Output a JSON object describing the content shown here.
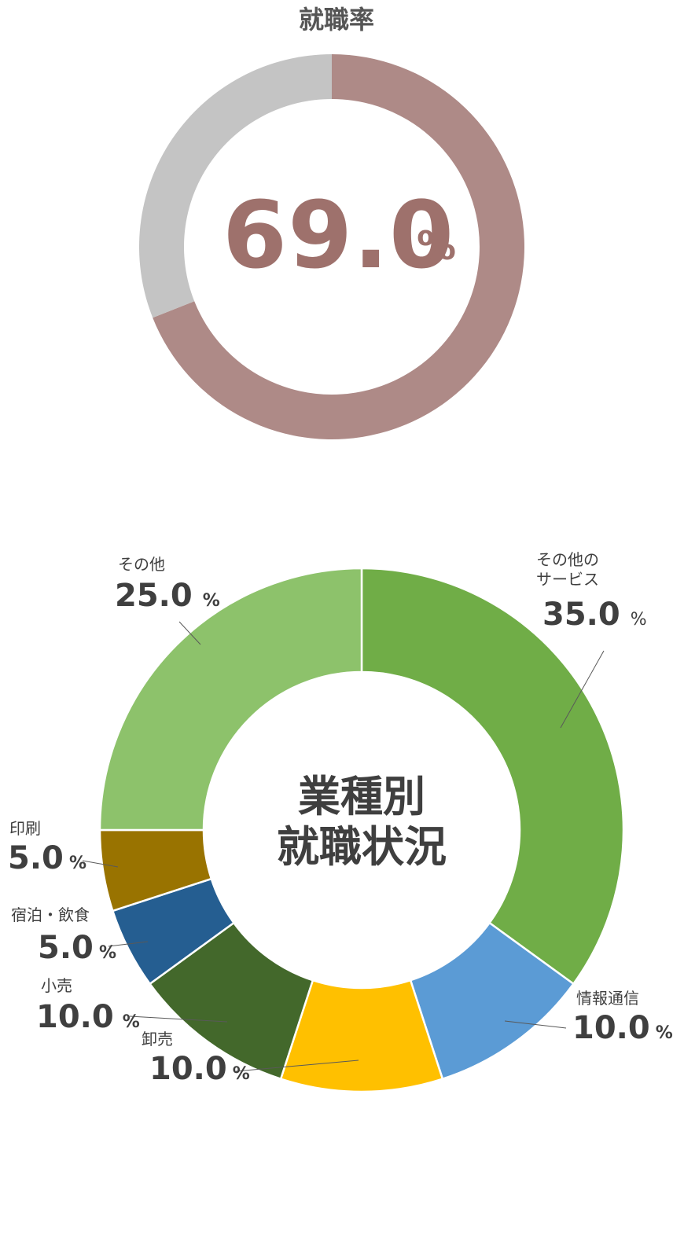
{
  "rate_chart": {
    "title": "就職率",
    "value_text": "69.0",
    "pct_sign": "%"
  },
  "industry_chart": {
    "center_line1": "業種別",
    "center_line2": "就職状況",
    "labels": {
      "other_services_line1": "その他の",
      "other_services_line2": "サービス",
      "other_services_value": "35.0",
      "it_name": "情報通信",
      "it_value": "10.0",
      "wholesale_name": "卸売",
      "wholesale_value": "10.0",
      "retail_name": "小売",
      "retail_value": "10.0",
      "hospitality_name": "宿泊・飲食",
      "hospitality_value": "5.0",
      "printing_name": "印刷",
      "printing_value": "5.0",
      "other_name": "その他",
      "other_value": "25.0",
      "pct_sign": "%"
    }
  },
  "chart_data": [
    {
      "type": "pie",
      "title": "就職率",
      "categories": [
        "",
        ""
      ],
      "values": [
        69.0,
        31.0
      ],
      "colors": [
        "#ae8a87",
        "#c4c4c4"
      ]
    },
    {
      "type": "pie",
      "title": "業種別就職状況",
      "categories": [
        "その他のサービス",
        "情報通信",
        "卸売",
        "小売",
        "宿泊・飲食",
        "印刷",
        "その他"
      ],
      "values": [
        35.0,
        10.0,
        10.0,
        10.0,
        5.0,
        5.0,
        25.0
      ],
      "colors": [
        "#70ad47",
        "#5b9bd5",
        "#ffc000",
        "#43682b",
        "#255e91",
        "#997300",
        "#8dc26b"
      ]
    }
  ]
}
